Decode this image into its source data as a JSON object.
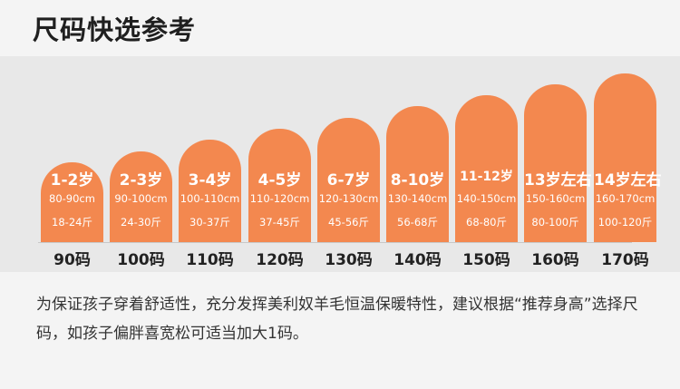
{
  "title": "尺码快选参考",
  "sizes": [
    {
      "age": "1-2岁",
      "height": "80-90cm",
      "weight": "18-24斤",
      "size": "90码"
    },
    {
      "age": "2-3岁",
      "height": "90-100cm",
      "weight": "24-30斤",
      "size": "100码"
    },
    {
      "age": "3-4岁",
      "height": "100-110cm",
      "weight": "30-37斤",
      "size": "110码"
    },
    {
      "age": "4-5岁",
      "height": "110-120cm",
      "weight": "37-45斤",
      "size": "120码"
    },
    {
      "age": "6-7岁",
      "height": "120-130cm",
      "weight": "45-56斤",
      "size": "130码"
    },
    {
      "age": "8-10岁",
      "height": "130-140cm",
      "weight": "56-68斤",
      "size": "140码"
    },
    {
      "age": "11-12岁",
      "height": "140-150cm",
      "weight": "68-80斤",
      "size": "150码"
    },
    {
      "age": "13岁左右",
      "height": "150-160cm",
      "weight": "80-100斤",
      "size": "160码"
    },
    {
      "age": "14岁左右",
      "height": "160-170cm",
      "weight": "100-120斤",
      "size": "170码"
    }
  ],
  "note": "为保证孩子穿着舒适性，充分发挥美利奴羊毛恒温保暖特性，建议根据“推荐身高”选择尺码，如孩子偏胖喜宽松可适当加大1码。",
  "colors": {
    "card": "#f3884f",
    "background": "#f4f4f4"
  }
}
